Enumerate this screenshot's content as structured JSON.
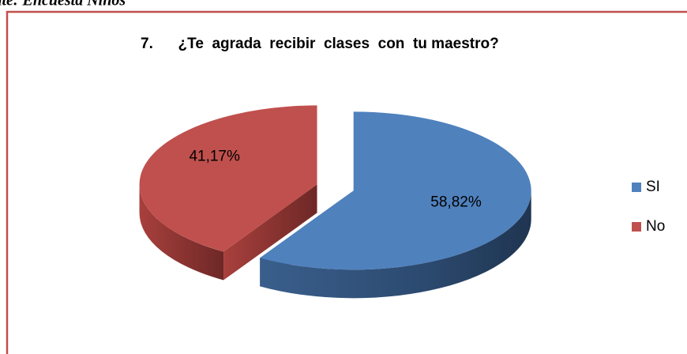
{
  "chart_data": {
    "type": "pie3d",
    "note": "Fuente: Encuesta Niños",
    "title": "7.      ¿Te  agrada  recibir  clases  con  tu maestro?",
    "categories": [
      "SI",
      "No"
    ],
    "values": [
      58.82,
      41.17
    ],
    "value_labels": [
      "58,82%",
      "41,17%"
    ],
    "colors": [
      "#4f81bd",
      "#c0504d"
    ],
    "legend": "right"
  }
}
